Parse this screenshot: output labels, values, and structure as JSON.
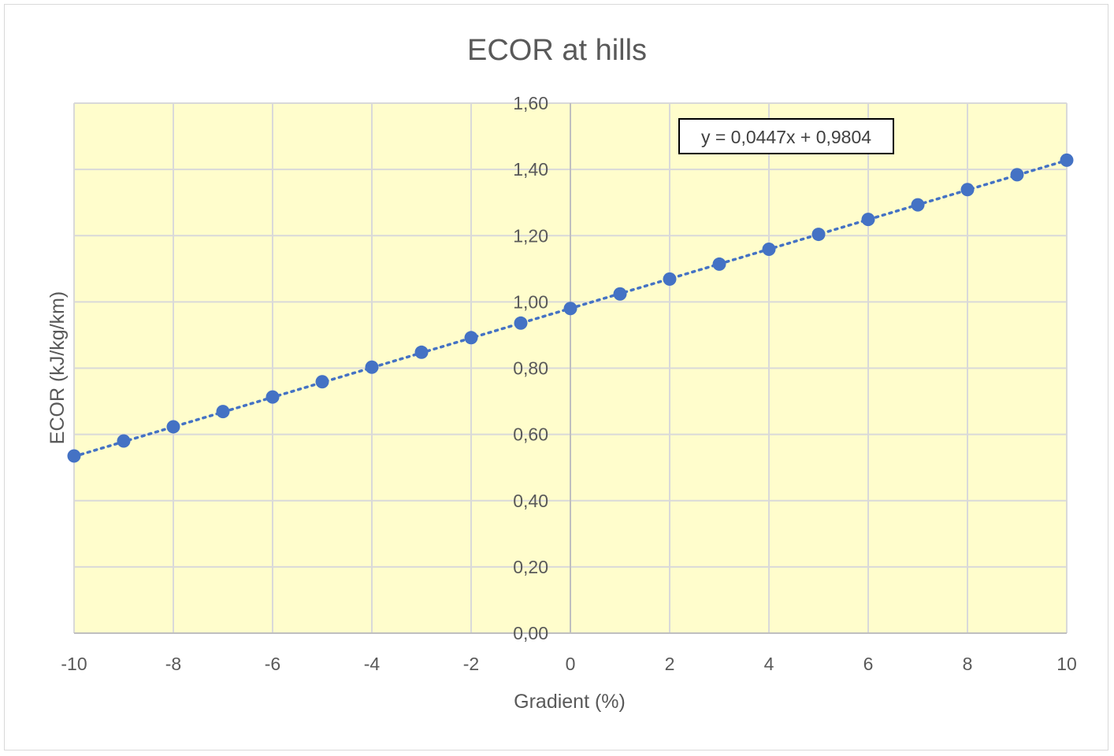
{
  "chart_data": {
    "type": "scatter",
    "title": "ECOR at hills",
    "xlabel": "Gradient (%)",
    "ylabel": "ECOR (kJ/kg/km)",
    "xlim": [
      -10,
      10
    ],
    "ylim": [
      0,
      1.6
    ],
    "x_ticks": [
      "-10",
      "-8",
      "-6",
      "-4",
      "-2",
      "0",
      "2",
      "4",
      "6",
      "8",
      "10"
    ],
    "y_ticks": [
      "0,00",
      "0,20",
      "0,40",
      "0,60",
      "0,80",
      "1,00",
      "1,20",
      "1,40",
      "1,60"
    ],
    "grid": true,
    "series": [
      {
        "x": [
          -10,
          -9,
          -8,
          -7,
          -6,
          -5,
          -4,
          -3,
          -2,
          -1,
          0,
          1,
          2,
          3,
          4,
          5,
          6,
          7,
          8,
          9,
          10
        ],
        "values": [
          0.535,
          0.58,
          0.623,
          0.669,
          0.713,
          0.759,
          0.803,
          0.848,
          0.892,
          0.936,
          0.98,
          1.024,
          1.069,
          1.114,
          1.159,
          1.204,
          1.249,
          1.293,
          1.339,
          1.384,
          1.428
        ],
        "color": "#4472c4"
      }
    ],
    "trendline": {
      "type": "linear",
      "slope": 0.0447,
      "intercept": 0.9804,
      "label": "y = 0,0447x + 0,9804",
      "style": "dotted",
      "color": "#4472c4"
    },
    "plot_background": "#fffdcc",
    "gridline_color": "#d9d9d9"
  }
}
